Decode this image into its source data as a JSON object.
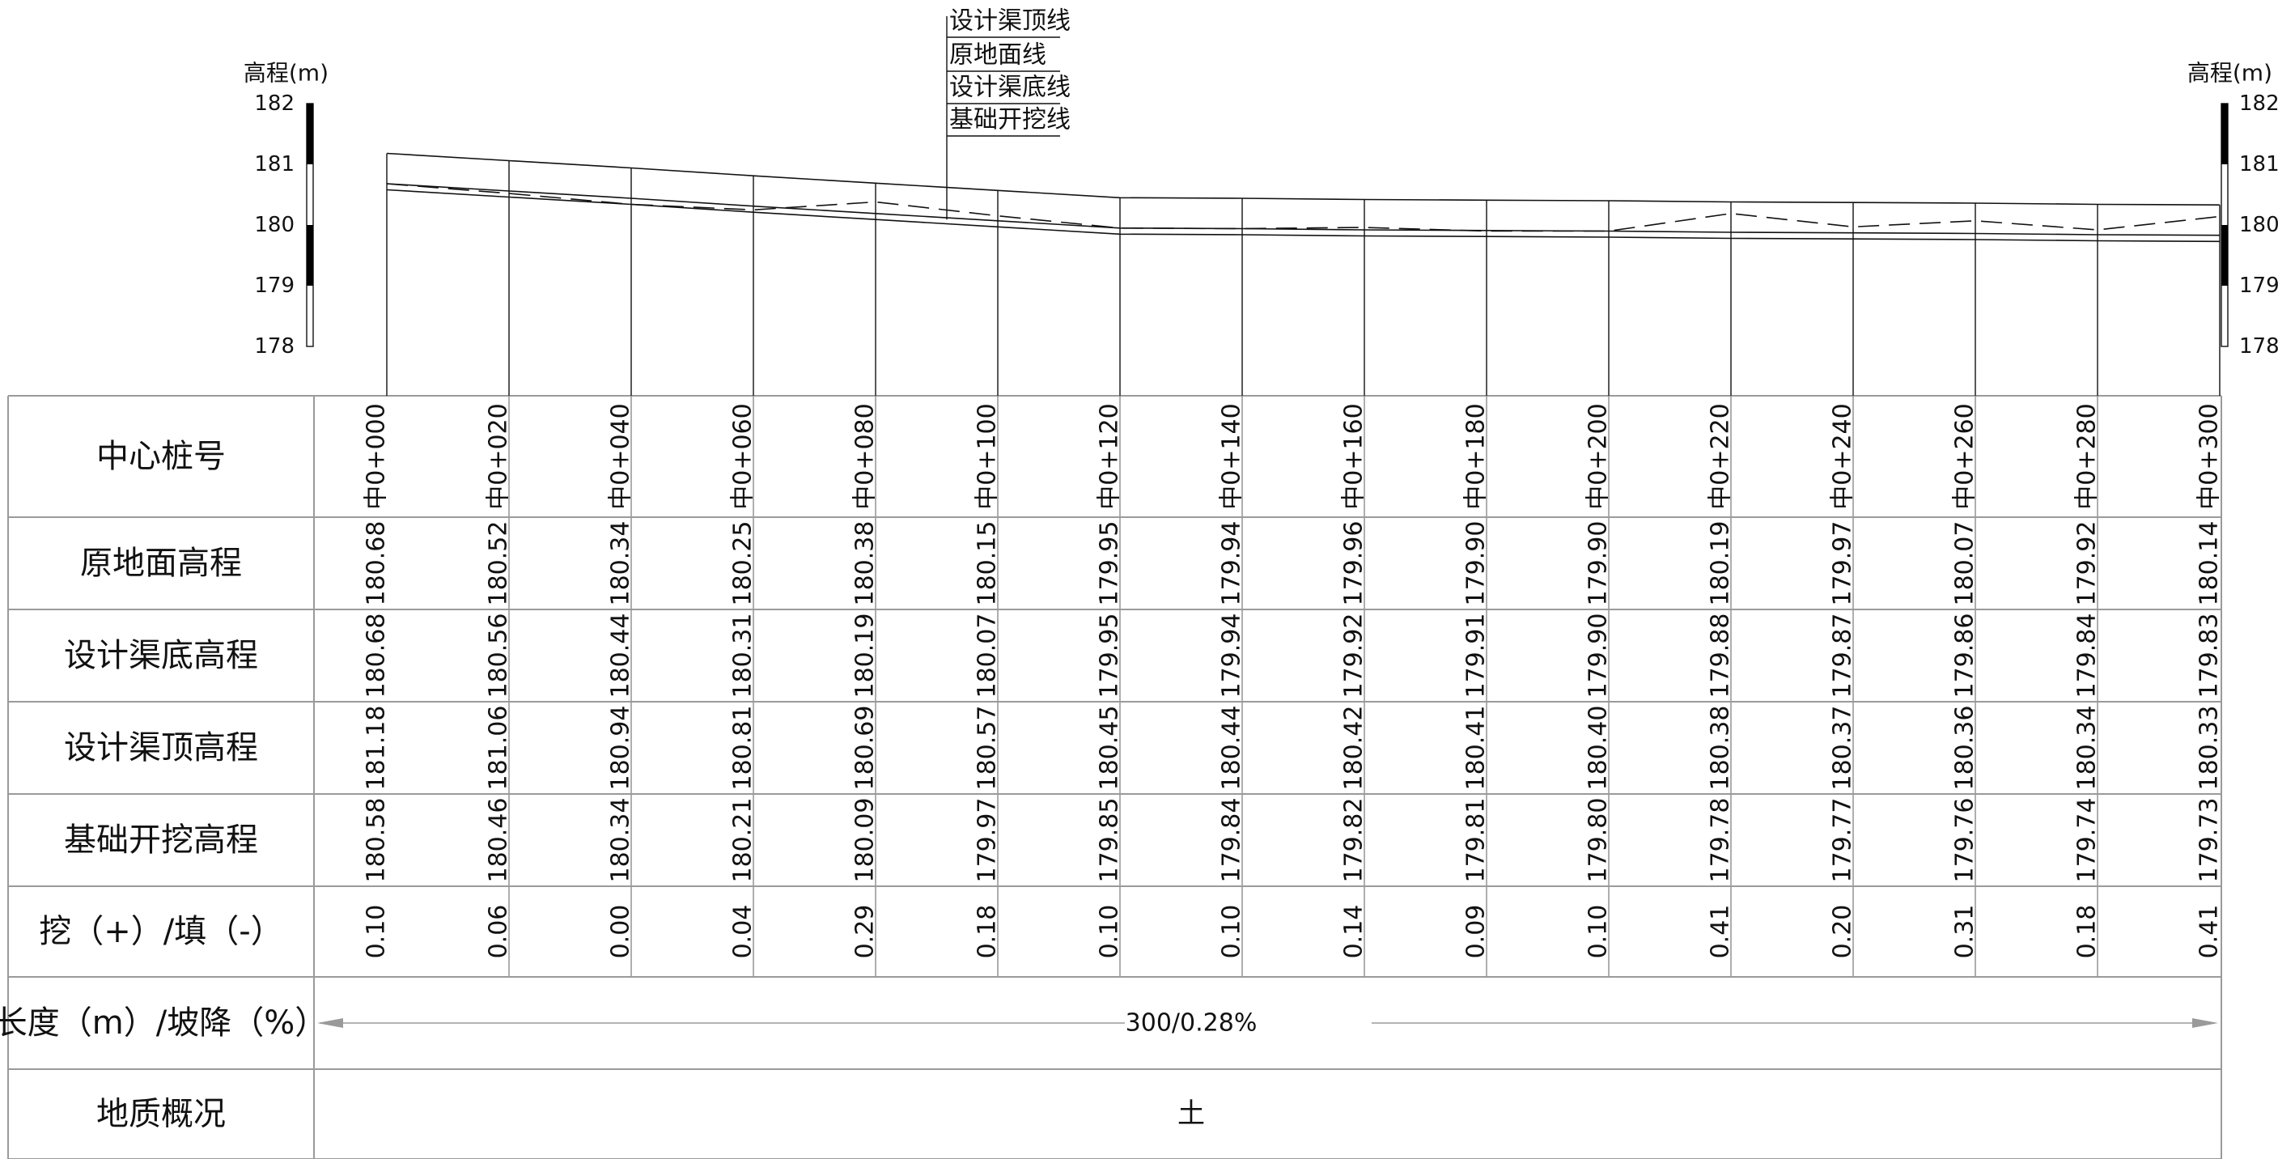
{
  "scale": {
    "title": "高程(m)",
    "ticks": [
      "182",
      "181",
      "180",
      "179",
      "178"
    ]
  },
  "legend": [
    "设计渠顶线",
    "原地面线",
    "设计渠底线",
    "基础开挖线"
  ],
  "row_labels": {
    "station": "中心桩号",
    "ground": "原地面高程",
    "bottom": "设计渠底高程",
    "top": "设计渠顶高程",
    "excavation": "基础开挖高程",
    "cutfill": "挖（+）/填（-）",
    "length_slope": "长度（m）/坡降（%）",
    "geology": "地质概况"
  },
  "chart_data": {
    "type": "line",
    "x": [
      "中0+000",
      "中0+020",
      "中0+040",
      "中0+060",
      "中0+080",
      "中0+100",
      "中0+120",
      "中0+140",
      "中0+160",
      "中0+180",
      "中0+200",
      "中0+220",
      "中0+240",
      "中0+260",
      "中0+280",
      "中0+300"
    ],
    "ylim": [
      178,
      182
    ],
    "series": [
      {
        "name": "设计渠顶线",
        "values": [
          "181.18",
          "181.06",
          "180.94",
          "180.81",
          "180.69",
          "180.57",
          "180.45",
          "180.44",
          "180.42",
          "180.41",
          "180.40",
          "180.38",
          "180.37",
          "180.36",
          "180.34",
          "180.33"
        ]
      },
      {
        "name": "原地面线",
        "values": [
          "180.68",
          "180.52",
          "180.34",
          "180.25",
          "180.38",
          "180.15",
          "179.95",
          "179.94",
          "179.96",
          "179.90",
          "179.90",
          "180.19",
          "179.97",
          "180.07",
          "179.92",
          "180.14"
        ]
      },
      {
        "name": "设计渠底线",
        "values": [
          "180.68",
          "180.56",
          "180.44",
          "180.31",
          "180.19",
          "180.07",
          "179.95",
          "179.94",
          "179.92",
          "179.91",
          "179.90",
          "179.88",
          "179.87",
          "179.86",
          "179.84",
          "179.83"
        ]
      },
      {
        "name": "基础开挖线",
        "values": [
          "180.58",
          "180.46",
          "180.34",
          "180.21",
          "180.09",
          "179.97",
          "179.85",
          "179.84",
          "179.82",
          "179.81",
          "179.80",
          "179.78",
          "179.77",
          "179.76",
          "179.74",
          "179.73"
        ]
      }
    ],
    "cut_fill": [
      "0.10",
      "0.06",
      "0.00",
      "0.04",
      "0.29",
      "0.18",
      "0.10",
      "0.10",
      "0.14",
      "0.09",
      "0.10",
      "0.41",
      "0.20",
      "0.31",
      "0.18",
      "0.41"
    ],
    "length_slope": "300/0.28%",
    "geology": "土"
  },
  "colors": {
    "line": "#111111",
    "grid": "#9a9a9a",
    "scale_dark": "#000000",
    "background": "#ffffff"
  }
}
